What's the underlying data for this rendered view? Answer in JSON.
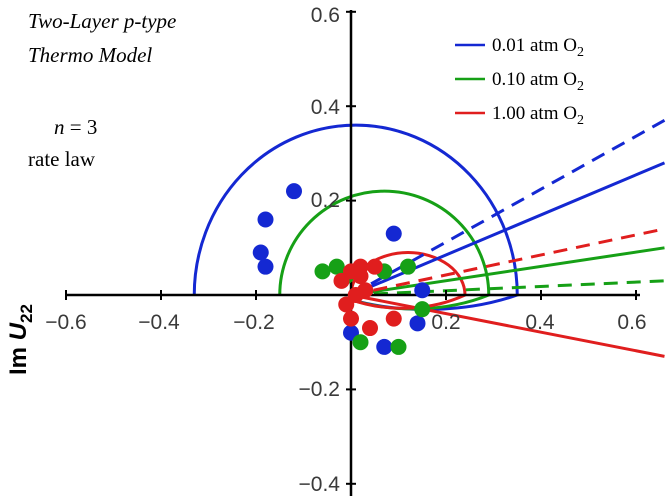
{
  "chart_data": {
    "type": "scatter",
    "title": "",
    "xlabel": "",
    "ylabel": "Im U22",
    "ylabel_main": "Im ",
    "ylabel_var": "U",
    "ylabel_sub": "22",
    "xlim": [
      -0.6,
      0.6
    ],
    "ylim": [
      -0.4,
      0.6
    ],
    "x_ticks": [
      -0.6,
      -0.4,
      -0.2,
      0.2,
      0.4,
      0.6
    ],
    "x_tick_labels": [
      "−0.6",
      "−0.4",
      "−0.2",
      "0.2",
      "0.4",
      "0.6"
    ],
    "y_ticks": [
      0.6,
      0.4,
      0.2,
      -0.2,
      -0.4
    ],
    "y_tick_labels": [
      "0.6",
      "0.4",
      "0.2",
      "−0.2",
      "−0.4"
    ],
    "annotations": {
      "model_line1": "Two-Layer p-type",
      "model_line2": "Thermo Model",
      "n_var": "n",
      "n_eq": " = 3",
      "rate_law": "rate law"
    },
    "legend": {
      "placement": "top-right",
      "entries": [
        {
          "main": "0.01 atm O",
          "sub": "2",
          "color": "#1428d2"
        },
        {
          "main": "0.10 atm O",
          "sub": "2",
          "color": "#16a016"
        },
        {
          "main": "1.00 atm O",
          "sub": "2",
          "color": "#e01e1e"
        }
      ]
    },
    "series": [
      {
        "color": "#1428d2",
        "arc": {
          "from": [
            -0.33,
            0.0
          ],
          "apex_y": 0.36,
          "to": [
            0.35,
            0.0
          ],
          "bottom_y": -0.19,
          "end": [
            0.0,
            -0.01
          ]
        },
        "solid_ray_end": [
          0.66,
          0.28
        ],
        "dashed_ray_end": [
          0.66,
          0.37
        ],
        "points": [
          [
            -0.12,
            0.22
          ],
          [
            -0.18,
            0.16
          ],
          [
            -0.19,
            0.09
          ],
          [
            -0.18,
            0.06
          ],
          [
            0.09,
            0.13
          ],
          [
            0.0,
            -0.08
          ],
          [
            0.07,
            -0.11
          ],
          [
            0.14,
            -0.06
          ],
          [
            0.15,
            0.01
          ]
        ]
      },
      {
        "color": "#16a016",
        "arc": {
          "from": [
            -0.15,
            0.0
          ],
          "apex_y": 0.22,
          "to": [
            0.29,
            0.0
          ],
          "bottom_y": -0.18,
          "end": [
            0.0,
            -0.01
          ]
        },
        "solid_ray_end": [
          0.66,
          0.1
        ],
        "dashed_ray_end": [
          0.66,
          0.03
        ],
        "points": [
          [
            -0.06,
            0.05
          ],
          [
            -0.03,
            0.06
          ],
          [
            -0.01,
            0.04
          ],
          [
            0.07,
            0.05
          ],
          [
            0.12,
            0.06
          ],
          [
            0.15,
            -0.03
          ],
          [
            0.02,
            -0.1
          ],
          [
            0.1,
            -0.11
          ]
        ]
      },
      {
        "color": "#e01e1e",
        "arc": {
          "from": [
            0.0,
            0.0
          ],
          "apex_y": 0.09,
          "to": [
            0.24,
            0.0
          ],
          "bottom_y": -0.17,
          "end": [
            0.0,
            -0.01
          ]
        },
        "solid_ray_end": [
          0.66,
          -0.13
        ],
        "dashed_ray_end": [
          0.66,
          0.14
        ],
        "points": [
          [
            -0.02,
            0.03
          ],
          [
            0.0,
            0.05
          ],
          [
            0.02,
            0.06
          ],
          [
            0.05,
            0.06
          ],
          [
            0.02,
            0.04
          ],
          [
            -0.01,
            -0.02
          ],
          [
            0.0,
            -0.05
          ],
          [
            0.04,
            -0.07
          ],
          [
            0.01,
            0.0
          ],
          [
            0.09,
            -0.05
          ],
          [
            0.03,
            0.01
          ]
        ]
      }
    ]
  }
}
